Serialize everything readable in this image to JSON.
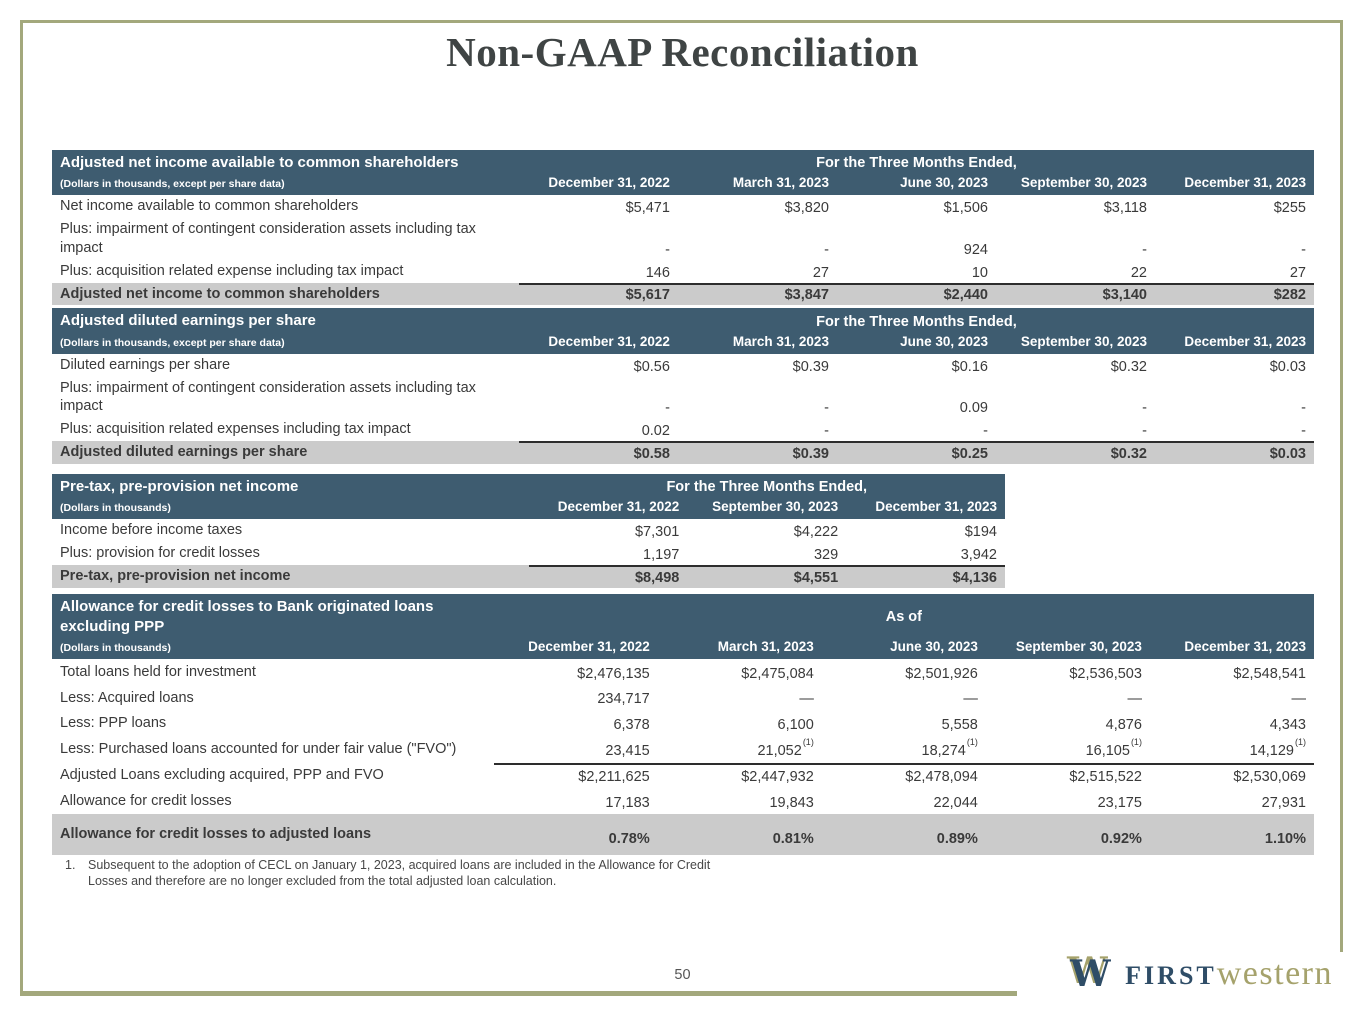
{
  "page": {
    "title": "Non-GAAP Reconciliation",
    "page_number": "50"
  },
  "footnote": {
    "number": "1.",
    "text": "Subsequent to the adoption of CECL on January 1, 2023, acquired loans are included in the Allowance for Credit Losses and therefore are no longer excluded from the total adjusted loan calculation."
  },
  "logo": {
    "mark": "W",
    "word_first": "FIRST",
    "word_western": "western"
  },
  "colors": {
    "header_bg": "#3E5C70",
    "total_row_bg": "#CBCBCB",
    "frame_olive": "#A3A87C",
    "title_color": "#3F4444",
    "body_text": "#3A3A3A",
    "logo_navy": "#2F4D67",
    "logo_olive": "#A5A26C"
  },
  "tables": [
    {
      "title": "Adjusted net income available to common shareholders",
      "subtitle": "(Dollars in thousands, except per share data)",
      "span_header": "For the Three Months Ended,",
      "columns": [
        "December 31, 2022",
        "March 31, 2023",
        "June 30, 2023",
        "September 30, 2023",
        "December 31, 2023"
      ],
      "rows": [
        {
          "label": "Net income available to common shareholders",
          "values": [
            "$5,471",
            "$3,820",
            "$1,506",
            "$3,118",
            "$255"
          ]
        },
        {
          "label": "Plus: impairment of contingent consideration assets including tax impact",
          "values": [
            "-",
            "-",
            "924",
            "-",
            "-"
          ]
        },
        {
          "label": "Plus: acquisition related expense including tax impact",
          "values": [
            "146",
            "27",
            "10",
            "22",
            "27"
          ]
        },
        {
          "label": "Adjusted net income to common shareholders",
          "values": [
            "$5,617",
            "$3,847",
            "$2,440",
            "$3,140",
            "$282"
          ],
          "total": true,
          "rule_above": true
        }
      ]
    },
    {
      "title": "Adjusted diluted earnings per share",
      "subtitle": "(Dollars in thousands, except per share data)",
      "span_header": "For the Three Months Ended,",
      "columns": [
        "December 31, 2022",
        "March 31, 2023",
        "June 30, 2023",
        "September 30, 2023",
        "December 31, 2023"
      ],
      "rows": [
        {
          "label": "Diluted earnings per share",
          "values": [
            "$0.56",
            "$0.39",
            "$0.16",
            "$0.32",
            "$0.03"
          ]
        },
        {
          "label": "Plus: impairment of contingent consideration assets including tax impact",
          "values": [
            "-",
            "-",
            "0.09",
            "-",
            "-"
          ]
        },
        {
          "label": "Plus: acquisition related expenses including tax impact",
          "values": [
            "0.02",
            "-",
            "-",
            "-",
            "-"
          ]
        },
        {
          "label": "Adjusted diluted earnings per share",
          "values": [
            "$0.58",
            "$0.39",
            "$0.25",
            "$0.32",
            "$0.03"
          ],
          "total": true,
          "rule_above": true
        }
      ]
    },
    {
      "title": "Pre-tax, pre-provision net income",
      "subtitle": "(Dollars in thousands)",
      "span_header": "For the Three Months Ended,",
      "columns": [
        "December 31, 2022",
        "September 30, 2023",
        "December 31, 2023"
      ],
      "rows": [
        {
          "label": "Income before income taxes",
          "values": [
            "$7,301",
            "$4,222",
            "$194"
          ]
        },
        {
          "label": "Plus: provision for credit losses",
          "values": [
            "1,197",
            "329",
            "3,942"
          ]
        },
        {
          "label": "Pre-tax, pre-provision net income",
          "values": [
            "$8,498",
            "$4,551",
            "$4,136"
          ],
          "total": true,
          "rule_above": true
        }
      ]
    },
    {
      "title": "Allowance for credit losses to Bank originated loans excluding PPP",
      "subtitle": "(Dollars in thousands)",
      "span_header": "As of",
      "columns": [
        "December 31, 2022",
        "March 31, 2023",
        "June 30, 2023",
        "September 30, 2023",
        "December 31, 2023"
      ],
      "rows": [
        {
          "label": "Total loans held for investment",
          "values": [
            "$2,476,135",
            "$2,475,084",
            "$2,501,926",
            "$2,536,503",
            "$2,548,541"
          ]
        },
        {
          "label": "Less: Acquired loans",
          "values": [
            "234,717",
            "—",
            "—",
            "—",
            "—"
          ]
        },
        {
          "label": "Less: PPP loans",
          "values": [
            "6,378",
            "6,100",
            "5,558",
            "4,876",
            "4,343"
          ]
        },
        {
          "label": "Less: Purchased loans accounted for under fair value (\"FVO\")",
          "values": [
            "23,415",
            "21,052",
            "18,274",
            "16,105",
            "14,129"
          ],
          "sups": [
            null,
            "(1)",
            "(1)",
            "(1)",
            "(1)"
          ]
        },
        {
          "label": "Adjusted Loans excluding acquired, PPP and FVO",
          "values": [
            "$2,211,625",
            "$2,447,932",
            "$2,478,094",
            "$2,515,522",
            "$2,530,069"
          ],
          "rule_above": true
        },
        {
          "label": "Allowance for credit losses",
          "values": [
            "17,183",
            "19,843",
            "22,044",
            "23,175",
            "27,931"
          ]
        },
        {
          "label": "Allowance for credit losses to adjusted loans",
          "values": [
            "0.78%",
            "0.81%",
            "0.89%",
            "0.92%",
            "1.10%"
          ],
          "total": true,
          "tall": true
        }
      ]
    }
  ]
}
